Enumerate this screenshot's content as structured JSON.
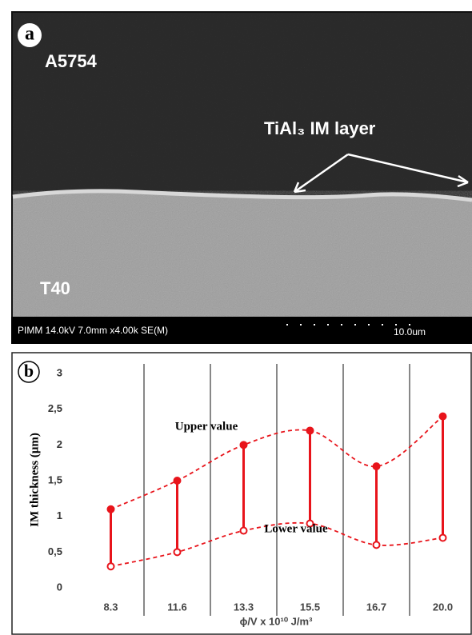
{
  "micrograph": {
    "panel_label": "a",
    "upper_material": "A5754",
    "layer_label": "TiAl₃ IM layer",
    "lower_material": "T40",
    "info_bar": "PIMM 14.0kV 7.0mm x4.00k SE(M)",
    "scale_bar": "10.0um"
  },
  "chart_data": {
    "type": "range",
    "panel_label": "b",
    "categories": [
      "8.3",
      "11.6",
      "13.3",
      "15.5",
      "16.7",
      "20.0"
    ],
    "series": [
      {
        "name": "Upper value",
        "color": "#e8141b",
        "values": [
          1.1,
          1.5,
          2.0,
          2.2,
          1.7,
          2.4
        ]
      },
      {
        "name": "Lower value",
        "color": "#e8141b",
        "values": [
          0.3,
          0.5,
          0.8,
          0.9,
          0.6,
          0.7
        ]
      }
    ],
    "x_label": "ϕ/V x 10¹⁰ J/m³",
    "y_label": "IM thickness (μm)",
    "ylim": [
      0,
      3
    ],
    "yticks": [
      0,
      {
        "value": 0.5,
        "label": "0,5"
      },
      1,
      {
        "value": 1.5,
        "label": "1,5"
      },
      2,
      {
        "value": 2.5,
        "label": "2,5"
      },
      3
    ]
  }
}
